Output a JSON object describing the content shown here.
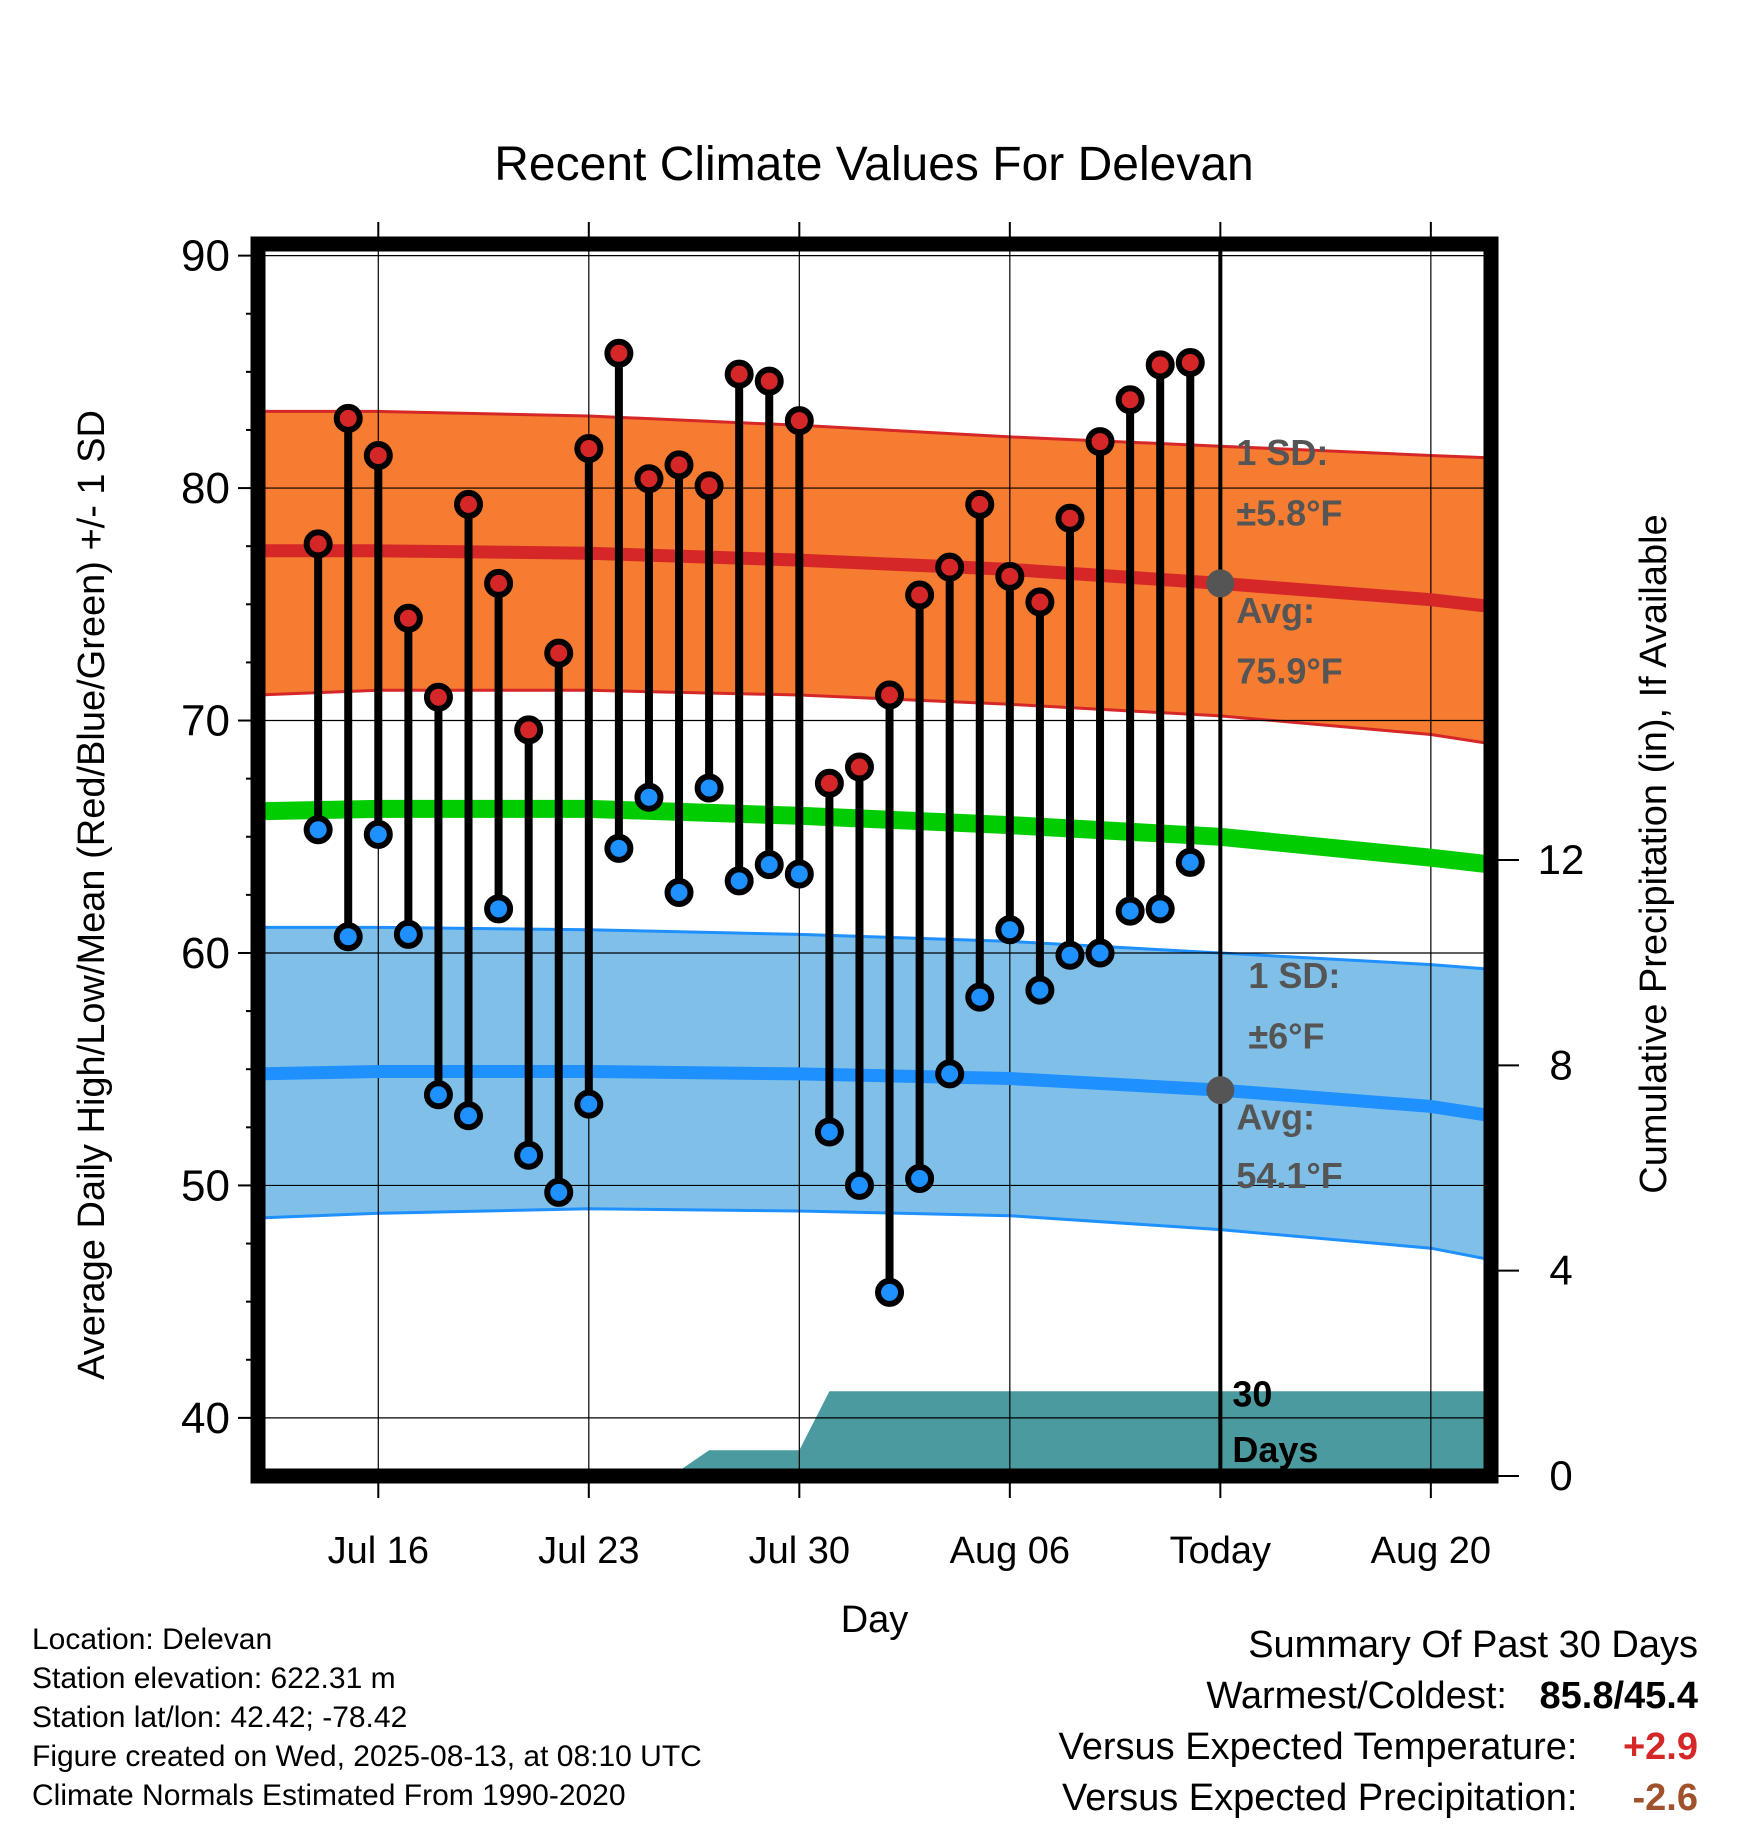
{
  "chart_data": {
    "type": "line",
    "title": "Recent Climate Values For Delevan",
    "xlabel": "Day",
    "ylabel": "Average Daily High/Low/Mean (Red/Blue/Green) +/- 1 SD",
    "y2label": "Cumulative Precipitation (in), If Available",
    "ylim": [
      37.5,
      90.5
    ],
    "yticks": [
      40,
      50,
      60,
      70,
      80,
      90
    ],
    "y2lim": [
      0,
      24
    ],
    "y2ticks": [
      0,
      4,
      8,
      12
    ],
    "xlim": [
      "2025-07-12",
      "2025-08-22"
    ],
    "xticks": [
      {
        "date": "2025-07-16",
        "label": "Jul 16"
      },
      {
        "date": "2025-07-23",
        "label": "Jul 23"
      },
      {
        "date": "2025-07-30",
        "label": "Jul 30"
      },
      {
        "date": "2025-08-06",
        "label": "Aug 06"
      },
      {
        "date": "2025-08-13",
        "label": "Today"
      },
      {
        "date": "2025-08-20",
        "label": "Aug 20"
      }
    ],
    "grid": true,
    "today": "2025-08-13",
    "normals": {
      "x": [
        "2025-07-12",
        "2025-07-16",
        "2025-07-23",
        "2025-07-30",
        "2025-08-06",
        "2025-08-13",
        "2025-08-20",
        "2025-08-22"
      ],
      "high_mean": [
        77.3,
        77.3,
        77.2,
        76.9,
        76.5,
        75.9,
        75.2,
        74.9
      ],
      "high_upper": [
        83.3,
        83.3,
        83.1,
        82.7,
        82.2,
        81.8,
        81.4,
        81.3
      ],
      "high_lower": [
        71.1,
        71.3,
        71.3,
        71.1,
        70.7,
        70.2,
        69.4,
        69.0
      ],
      "daily_mean": [
        66.1,
        66.2,
        66.2,
        65.9,
        65.5,
        65.0,
        64.1,
        63.8
      ],
      "low_mean": [
        54.8,
        54.9,
        54.9,
        54.8,
        54.6,
        54.1,
        53.4,
        53.0
      ],
      "low_upper": [
        61.1,
        61.1,
        61.0,
        60.8,
        60.5,
        60.0,
        59.5,
        59.3
      ],
      "low_lower": [
        48.6,
        48.8,
        49.0,
        48.9,
        48.7,
        48.1,
        47.3,
        46.8
      ]
    },
    "observed": {
      "dates": [
        "2025-07-14",
        "2025-07-15",
        "2025-07-16",
        "2025-07-17",
        "2025-07-18",
        "2025-07-19",
        "2025-07-20",
        "2025-07-21",
        "2025-07-22",
        "2025-07-23",
        "2025-07-24",
        "2025-07-25",
        "2025-07-26",
        "2025-07-27",
        "2025-07-28",
        "2025-07-29",
        "2025-07-30",
        "2025-07-31",
        "2025-08-01",
        "2025-08-02",
        "2025-08-03",
        "2025-08-04",
        "2025-08-05",
        "2025-08-06",
        "2025-08-07",
        "2025-08-08",
        "2025-08-09",
        "2025-08-10",
        "2025-08-11",
        "2025-08-12"
      ],
      "highs": [
        77.6,
        83.0,
        81.4,
        74.4,
        71.0,
        79.3,
        75.9,
        69.6,
        72.9,
        81.7,
        85.8,
        80.4,
        81.0,
        80.1,
        84.9,
        84.6,
        82.9,
        67.3,
        68.0,
        71.1,
        75.4,
        76.6,
        79.3,
        76.2,
        75.1,
        78.7,
        82.0,
        83.8,
        85.3,
        85.4
      ],
      "lows": [
        65.3,
        60.7,
        65.1,
        60.8,
        53.9,
        53.0,
        61.9,
        51.3,
        49.7,
        53.5,
        64.5,
        66.7,
        62.6,
        67.1,
        63.1,
        63.8,
        63.4,
        52.3,
        50.0,
        45.4,
        50.3,
        54.8,
        58.1,
        61.0,
        58.4,
        59.9,
        60.0,
        61.8,
        61.9,
        63.9
      ]
    },
    "precip_cumulative": {
      "x": [
        "2025-07-12",
        "2025-07-16",
        "2025-07-19",
        "2025-07-19",
        "2025-07-26",
        "2025-07-27",
        "2025-07-30",
        "2025-07-31",
        "2025-08-22"
      ],
      "y": [
        0,
        0,
        0,
        0.1,
        0.1,
        0.5,
        0.5,
        1.65,
        1.65
      ]
    },
    "annotations": {
      "high_sd": "1 SD:",
      "high_sd_value": "±5.8°F",
      "high_avg": "Avg:",
      "high_avg_value": "75.9°F",
      "low_sd": "1 SD:",
      "low_sd_value": "±6°F",
      "low_avg": "Avg:",
      "low_avg_value": "54.1°F",
      "days_count": "30",
      "days_word": "Days"
    },
    "colors": {
      "high_band": "#f57c30",
      "high_line": "#d62728",
      "low_band": "#80c0e8",
      "low_line": "#1e90ff",
      "mean_line": "#00cc00",
      "precip": "#4a9aa0",
      "high_marker": "#d62728",
      "low_marker": "#1e90ff",
      "annotation_text": "#555555"
    }
  },
  "meta": {
    "location": "Location: Delevan",
    "elevation": "Station elevation: 622.31 m",
    "latlon": "Station lat/lon: 42.42; -78.42",
    "created": "Figure created on Wed, 2025-08-13, at 08:10 UTC",
    "normals": "Climate Normals Estimated From 1990-2020"
  },
  "summary": {
    "title": "Summary Of Past 30 Days",
    "warmest_label": "Warmest/Coldest:",
    "warmest_value": "85.8/45.4",
    "temp_label": "Versus Expected Temperature:",
    "temp_value": "+2.9",
    "precip_label": "Versus Expected Precipitation:",
    "precip_value": "-2.6"
  }
}
